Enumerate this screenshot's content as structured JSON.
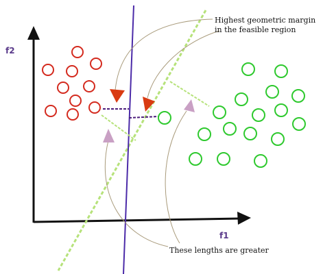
{
  "axes": {
    "x_label": "f1",
    "y_label": "f2",
    "x_label_color": "#5a3a8a",
    "y_label_color": "#5a3a8a",
    "axis_color": "#111111"
  },
  "annotations": {
    "top_line1": "Highest geometric margin",
    "top_line2": "in the feasible region",
    "bottom": "These lengths are greater"
  },
  "colors": {
    "red_class": "#d42a1e",
    "green_class": "#2ec92e",
    "purple_boundary": "#4b2aa8",
    "green_boundary": "#b6e27a",
    "margin_dash_purple": "#4a1a7a",
    "margin_dash_green": "#b6e27a",
    "arrow_red": "#d93b12",
    "arrow_pink": "#c9a0c4",
    "curve": "#a89a7a"
  },
  "legend_icons": [
    "red-circle-icon",
    "green-circle-icon",
    "arrowhead-icon"
  ]
}
